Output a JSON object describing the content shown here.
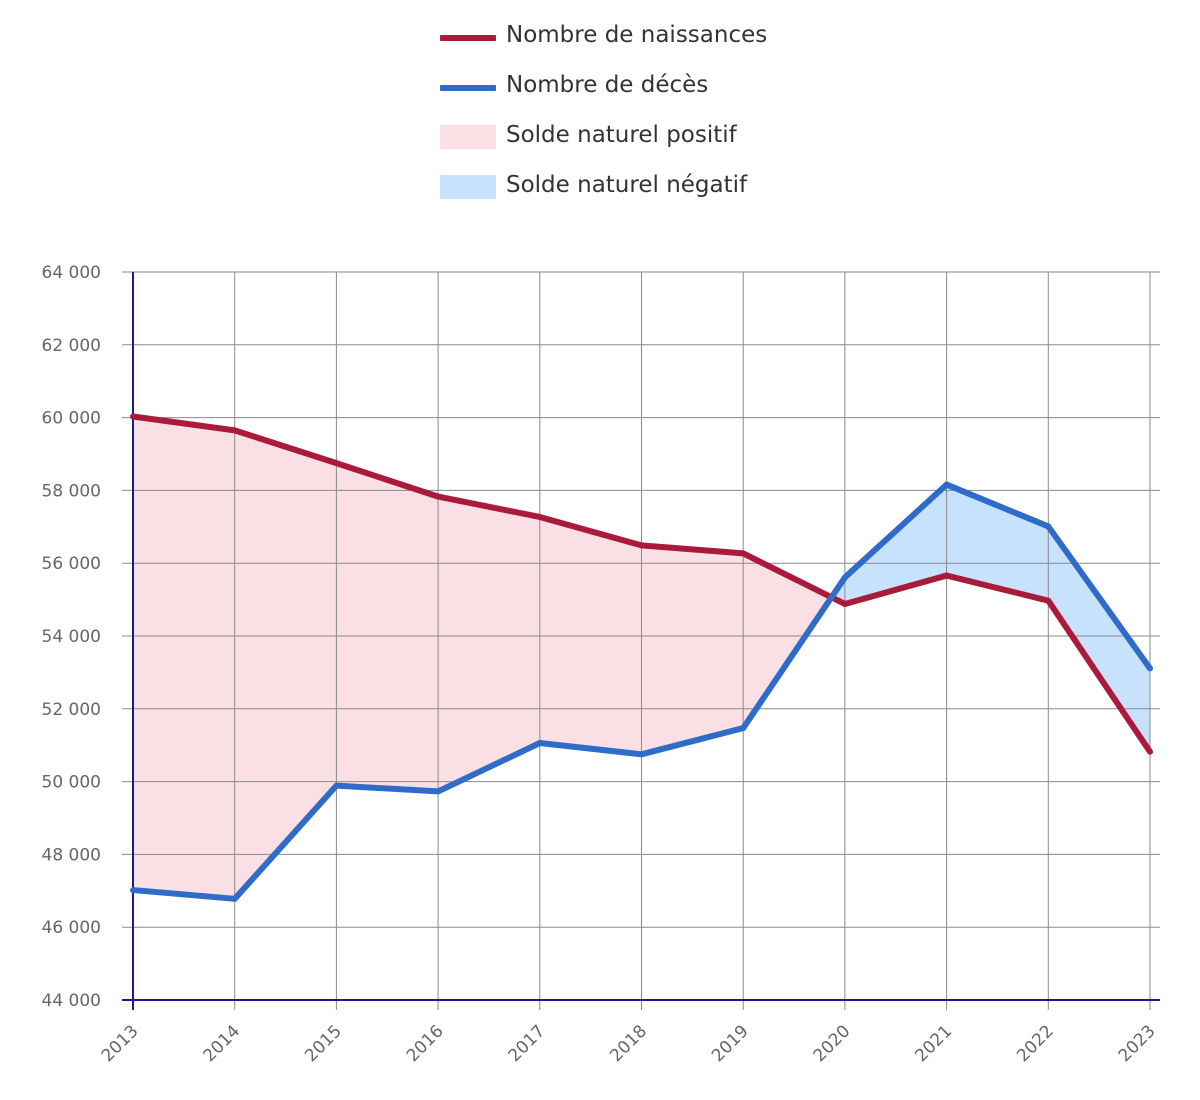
{
  "chart_data": {
    "type": "line",
    "categories": [
      "2013",
      "2014",
      "2015",
      "2016",
      "2017",
      "2018",
      "2019",
      "2020",
      "2021",
      "2022",
      "2023"
    ],
    "series": [
      {
        "name": "Nombre de naissances",
        "color": "#a91a3b",
        "values": [
          60030,
          59650,
          58750,
          57830,
          57270,
          56490,
          56270,
          54880,
          55660,
          54970,
          50820
        ]
      },
      {
        "name": "Nombre de décès",
        "color": "#2f6bc8",
        "values": [
          47020,
          46780,
          49890,
          49730,
          51060,
          50750,
          51470,
          55610,
          58160,
          57010,
          53110
        ]
      }
    ],
    "areas": [
      {
        "name": "Solde naturel positif",
        "color": "#fae0e5"
      },
      {
        "name": "Solde naturel négatif",
        "color": "#c7e2fd"
      }
    ],
    "ylim": [
      44000,
      64000
    ],
    "yticks": [
      {
        "value": 64000,
        "label": "64 000"
      },
      {
        "value": 62000,
        "label": "62 000"
      },
      {
        "value": 60000,
        "label": "60 000"
      },
      {
        "value": 58000,
        "label": "58 000"
      },
      {
        "value": 56000,
        "label": "56 000"
      },
      {
        "value": 54000,
        "label": "54 000"
      },
      {
        "value": 52000,
        "label": "52 000"
      },
      {
        "value": 50000,
        "label": "50 000"
      },
      {
        "value": 48000,
        "label": "48 000"
      },
      {
        "value": 46000,
        "label": "46 000"
      },
      {
        "value": 44000,
        "label": "44 000"
      }
    ],
    "grid": true,
    "legend_position": "top",
    "axis_color": "#1a1a8c",
    "grid_color": "#8a8a8a"
  }
}
